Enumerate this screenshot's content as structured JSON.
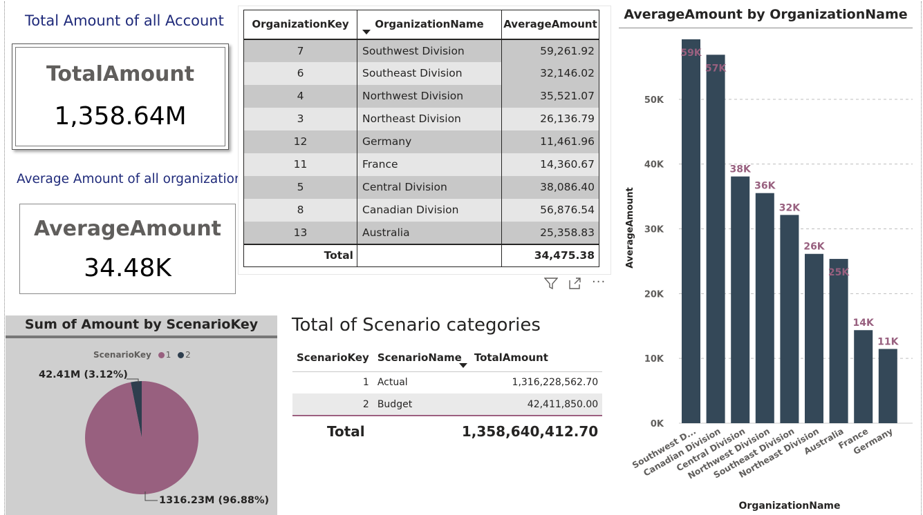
{
  "kpi": {
    "total_title": "Total Amount of all Account",
    "total_label": "TotalAmount",
    "total_value": "1,358.64M",
    "avg_title": "Average Amount of all organization",
    "avg_label": "AverageAmount",
    "avg_value": "34.48K"
  },
  "org_table": {
    "headers": [
      "OrganizationKey",
      "OrganizationName",
      "AverageAmount"
    ],
    "rows": [
      {
        "key": "7",
        "name": "Southwest Division",
        "amount": "59,261.92"
      },
      {
        "key": "6",
        "name": "Southeast Division",
        "amount": "32,146.02"
      },
      {
        "key": "4",
        "name": "Northwest Division",
        "amount": "35,521.07"
      },
      {
        "key": "3",
        "name": "Northeast Division",
        "amount": "26,136.79"
      },
      {
        "key": "12",
        "name": "Germany",
        "amount": "11,461.96"
      },
      {
        "key": "11",
        "name": "France",
        "amount": "14,360.67"
      },
      {
        "key": "5",
        "name": "Central Division",
        "amount": "38,086.40"
      },
      {
        "key": "8",
        "name": "Canadian Division",
        "amount": "56,876.54"
      },
      {
        "key": "13",
        "name": "Australia",
        "amount": "25,358.83"
      }
    ],
    "total_label": "Total",
    "total_value": "34,475.38"
  },
  "toolbar": {
    "filter_icon": "filter-icon",
    "focus_icon": "focus-mode-icon",
    "more_icon": "more-options-icon"
  },
  "scenario_table": {
    "title": "Total of Scenario categories",
    "headers": [
      "ScenarioKey",
      "ScenarioName",
      "TotalAmount"
    ],
    "rows": [
      {
        "key": "1",
        "name": "Actual",
        "amount": "1,316,228,562.70"
      },
      {
        "key": "2",
        "name": "Budget",
        "amount": "42,411,850.00"
      }
    ],
    "total_label": "Total",
    "total_value": "1,358,640,412.70"
  },
  "chart_data": [
    {
      "type": "pie",
      "title": "Sum of Amount by ScenarioKey",
      "legend_title": "ScenarioKey",
      "legend_position": "top",
      "slices": [
        {
          "name": "1",
          "value": 1316.23,
          "percent": 96.88,
          "label": "1316.23M (96.88%)",
          "color": "#98607f"
        },
        {
          "name": "2",
          "value": 42.41,
          "percent": 3.12,
          "label": "42.41M (3.12%)",
          "color": "#2e3e4e"
        }
      ]
    },
    {
      "type": "bar",
      "title": "AverageAmount by OrganizationName",
      "xlabel": "OrganizationName",
      "ylabel": "AverageAmount",
      "ylim": [
        0,
        60000
      ],
      "yticks": [
        "0K",
        "10K",
        "20K",
        "30K",
        "40K",
        "50K"
      ],
      "grid": true,
      "bar_color": "#344858",
      "label_color": "#98607f",
      "categories": [
        "Southwest D...",
        "Canadian Division",
        "Central Division",
        "Northwest Division",
        "Southeast Division",
        "Northeast Division",
        "Australia",
        "France",
        "Germany"
      ],
      "values": [
        59261.92,
        56876.54,
        38086.4,
        35521.07,
        32146.02,
        26136.79,
        25358.83,
        14360.67,
        11461.96
      ],
      "data_labels": [
        "59K",
        "57K",
        "38K",
        "36K",
        "32K",
        "26K",
        "25K",
        "14K",
        "11K"
      ]
    }
  ]
}
